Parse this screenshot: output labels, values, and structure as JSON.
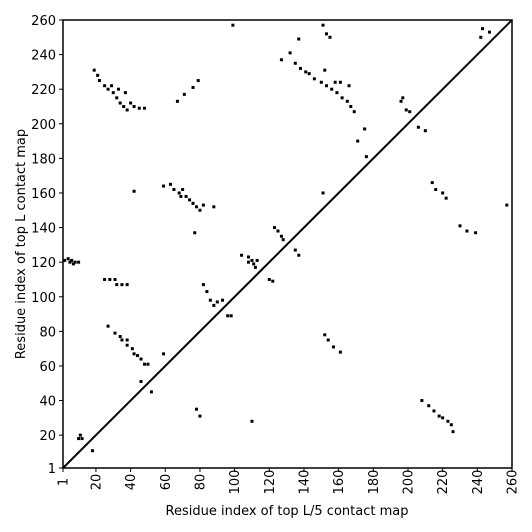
{
  "chart_data": {
    "type": "scatter",
    "x_label": "Residue index of top L/5 contact map",
    "y_label": "Residue index of top L contact map",
    "xlim": [
      1,
      260
    ],
    "ylim": [
      1,
      260
    ],
    "xticks": [
      1,
      20,
      40,
      60,
      80,
      100,
      120,
      140,
      160,
      180,
      200,
      220,
      240,
      260
    ],
    "yticks": [
      1,
      20,
      40,
      60,
      80,
      100,
      120,
      140,
      160,
      180,
      200,
      220,
      240,
      260
    ],
    "diagonal": true,
    "series": [
      {
        "color": "#000000",
        "x": [
          2,
          4,
          5,
          6,
          7,
          8,
          10,
          10,
          11,
          12,
          18,
          19,
          21,
          22,
          25,
          27,
          30,
          32,
          34,
          36,
          38,
          40,
          42,
          45,
          48,
          33,
          37,
          29,
          25,
          28,
          31,
          32,
          35,
          38,
          27,
          31,
          34,
          35,
          38,
          38,
          41,
          42,
          44,
          46,
          48,
          50,
          52,
          46,
          59,
          42,
          59,
          63,
          65,
          68,
          70,
          72,
          74,
          76,
          78,
          80,
          82,
          69,
          88,
          77,
          67,
          71,
          76,
          79,
          82,
          84,
          86,
          88,
          90,
          93,
          96,
          98,
          99,
          104,
          108,
          110,
          111,
          112,
          108,
          113,
          120,
          122,
          123,
          125,
          127,
          128,
          127,
          132,
          137,
          135,
          138,
          141,
          143,
          146,
          150,
          153,
          156,
          159,
          162,
          165,
          167,
          169,
          152,
          161,
          166,
          158,
          137,
          135,
          151,
          153,
          155,
          171,
          175,
          176,
          196,
          199,
          201,
          197,
          151,
          206,
          210,
          242,
          247,
          243,
          78,
          80,
          110,
          152,
          154,
          157,
          161,
          208,
          212,
          215,
          218,
          220,
          223,
          225,
          226,
          214,
          216,
          220,
          222,
          230,
          234,
          239,
          257
        ],
        "values": [
          121,
          122,
          120,
          121,
          119,
          120,
          120,
          18,
          20,
          18,
          11,
          231,
          228,
          225,
          222,
          220,
          218,
          215,
          212,
          210,
          208,
          212,
          210,
          209,
          209,
          220,
          218,
          222,
          110,
          110,
          110,
          107,
          107,
          107,
          83,
          79,
          77,
          75,
          75,
          72,
          70,
          67,
          66,
          64,
          61,
          61,
          45,
          51,
          67,
          161,
          164,
          165,
          162,
          160,
          162,
          158,
          156,
          154,
          152,
          150,
          153,
          158,
          152,
          137,
          213,
          217,
          221,
          225,
          107,
          103,
          98,
          95,
          97,
          98,
          89,
          89,
          257,
          124,
          123,
          121,
          119,
          117,
          120,
          121,
          110,
          109,
          140,
          138,
          135,
          133,
          237,
          241,
          249,
          235,
          232,
          230,
          229,
          226,
          224,
          222,
          220,
          218,
          215,
          213,
          210,
          207,
          231,
          224,
          222,
          224,
          124,
          127,
          257,
          252,
          250,
          190,
          197,
          181,
          213,
          208,
          207,
          215,
          160,
          198,
          196,
          250,
          253,
          255,
          35,
          31,
          28,
          78,
          75,
          71,
          68,
          40,
          37,
          34,
          31,
          30,
          28,
          26,
          22,
          166,
          162,
          160,
          157,
          141,
          138,
          137,
          153
        ]
      }
    ]
  }
}
